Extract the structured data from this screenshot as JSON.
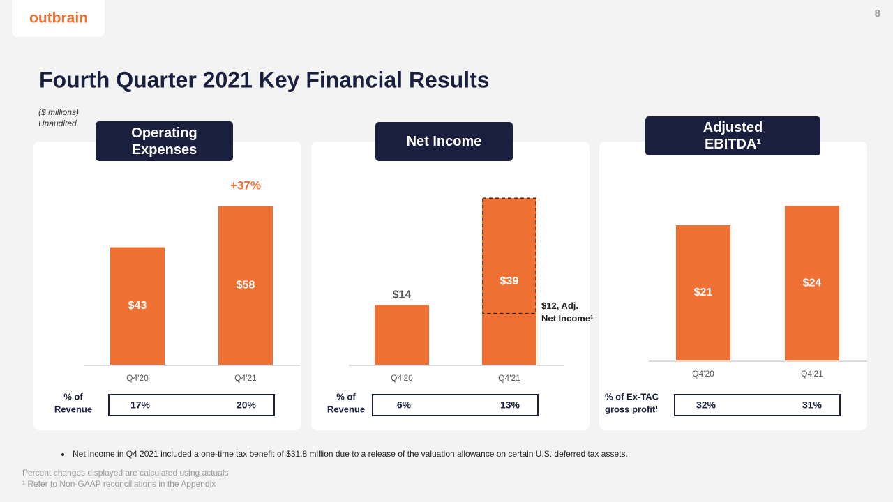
{
  "logo": "outbrain",
  "page_number": "8",
  "title": "Fourth Quarter 2021 Key Financial Results",
  "unit_note": "($ millions)",
  "audit_note": "Unaudited",
  "bullet": "Net income in Q4 2021 included a one-time tax benefit of $31.8 million due to a release of the valuation allowance on certain U.S. deferred tax assets.",
  "footnotes": [
    "Percent changes displayed are calculated using actuals",
    "¹ Refer to Non-GAAP reconciliations in the Appendix"
  ],
  "chart_data": [
    {
      "type": "bar",
      "title": "Operating Expenses",
      "categories": [
        "Q4'20",
        "Q4'21"
      ],
      "values": [
        43,
        58
      ],
      "value_labels": [
        "$43",
        "$58"
      ],
      "color": "#ee7033",
      "ylim": [
        0,
        60
      ],
      "change_label": "+37%",
      "ratio_label": [
        "% of",
        "Revenue"
      ],
      "ratio_values": [
        17,
        20
      ],
      "ratio_value_labels": [
        "17%",
        "20%"
      ]
    },
    {
      "type": "bar",
      "title": "Net Income",
      "categories": [
        "Q4'20",
        "Q4'21"
      ],
      "values": [
        14,
        39
      ],
      "value_labels": [
        "$14",
        "$39"
      ],
      "color": "#ee7033",
      "ylim": [
        0,
        40
      ],
      "annotation": {
        "category": 1,
        "value": 12,
        "label_lines": [
          "$12, Adj.",
          "Net Income¹"
        ]
      },
      "ratio_label": [
        "% of",
        "Revenue"
      ],
      "ratio_values": [
        6,
        13
      ],
      "ratio_value_labels": [
        "6%",
        "13%"
      ]
    },
    {
      "type": "bar",
      "title": "Adjusted EBITDA¹",
      "categories": [
        "Q4'20",
        "Q4'21"
      ],
      "values": [
        21,
        24
      ],
      "value_labels": [
        "$21",
        "$24"
      ],
      "color": "#ee7033",
      "ylim": [
        0,
        25
      ],
      "ratio_label": [
        "% of Ex-TAC",
        "gross profit¹"
      ],
      "ratio_values": [
        32,
        31
      ],
      "ratio_value_labels": [
        "32%",
        "31%"
      ]
    }
  ]
}
